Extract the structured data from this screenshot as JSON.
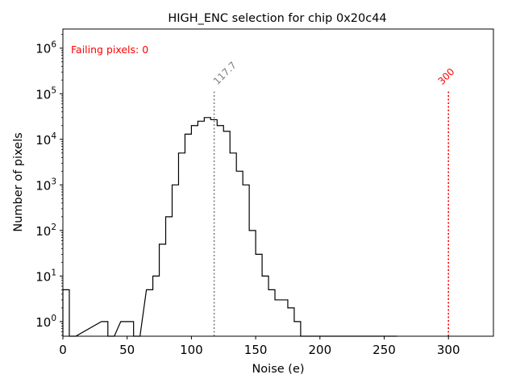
{
  "chart_data": {
    "type": "histogram",
    "title": "HIGH_ENC selection for chip 0x20c44",
    "xlabel": "Noise (e)",
    "ylabel": "Number of pixels",
    "xlim": [
      0,
      335
    ],
    "ylim_log10": [
      -0.32,
      6.42
    ],
    "yscale": "log",
    "x_ticks": [
      0,
      50,
      100,
      150,
      200,
      250,
      300
    ],
    "y_ticks": [
      {
        "exp": 0,
        "label_base": "10",
        "label_exp": "0"
      },
      {
        "exp": 1,
        "label_base": "10",
        "label_exp": "1"
      },
      {
        "exp": 2,
        "label_base": "10",
        "label_exp": "2"
      },
      {
        "exp": 3,
        "label_base": "10",
        "label_exp": "3"
      },
      {
        "exp": 4,
        "label_base": "10",
        "label_exp": "4"
      },
      {
        "exp": 5,
        "label_base": "10",
        "label_exp": "5"
      },
      {
        "exp": 6,
        "label_base": "10",
        "label_exp": "6"
      }
    ],
    "bin_width": 5,
    "bins": [
      [
        0,
        5
      ],
      [
        5,
        0
      ],
      [
        30,
        1
      ],
      [
        35,
        0
      ],
      [
        45,
        1
      ],
      [
        50,
        1
      ],
      [
        55,
        0
      ],
      [
        65,
        5
      ],
      [
        70,
        10
      ],
      [
        75,
        50
      ],
      [
        80,
        200
      ],
      [
        85,
        1000
      ],
      [
        90,
        5000
      ],
      [
        95,
        13000
      ],
      [
        100,
        20000
      ],
      [
        105,
        25000
      ],
      [
        110,
        30000
      ],
      [
        115,
        27000
      ],
      [
        120,
        20000
      ],
      [
        125,
        15000
      ],
      [
        130,
        5000
      ],
      [
        135,
        2000
      ],
      [
        140,
        1000
      ],
      [
        145,
        100
      ],
      [
        150,
        30
      ],
      [
        155,
        10
      ],
      [
        160,
        5
      ],
      [
        165,
        3
      ],
      [
        170,
        3
      ],
      [
        175,
        2
      ],
      [
        180,
        1
      ],
      [
        185,
        0
      ],
      [
        190,
        0
      ],
      [
        195,
        0
      ],
      [
        200,
        0
      ],
      [
        205,
        0
      ],
      [
        210,
        0
      ],
      [
        215,
        0
      ],
      [
        220,
        0
      ],
      [
        225,
        0
      ],
      [
        230,
        0
      ],
      [
        235,
        0
      ],
      [
        240,
        0
      ],
      [
        245,
        0
      ],
      [
        250,
        0
      ],
      [
        255,
        0
      ]
    ],
    "annotations": {
      "mean_line": {
        "x": 117.7,
        "label": "117.7",
        "color": "#808080"
      },
      "threshold_line": {
        "x": 300,
        "label": "300",
        "color": "#ff0000"
      },
      "failing_text": {
        "label": "Failing pixels: 0",
        "color": "#ff0000"
      }
    }
  }
}
